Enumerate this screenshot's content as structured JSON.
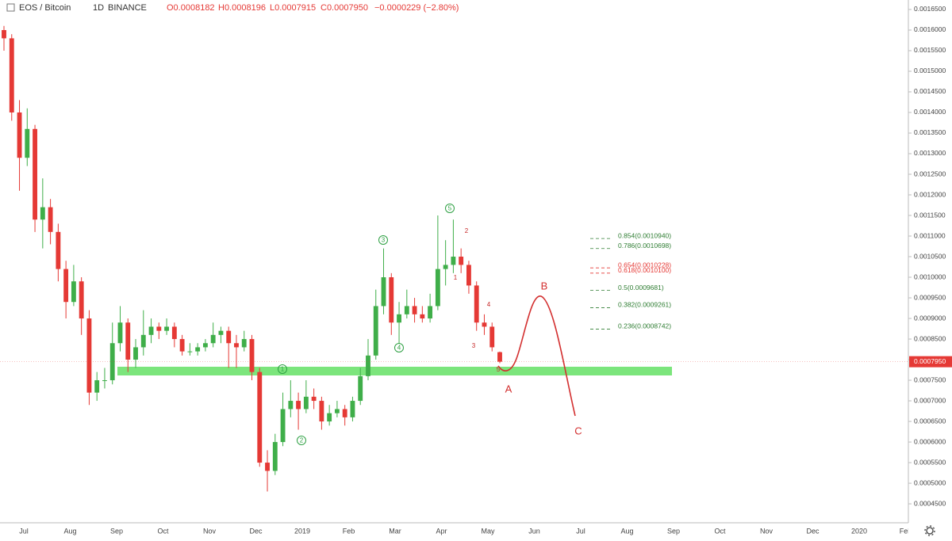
{
  "chart_data": {
    "type": "candlestick",
    "header": {
      "symbol": "EOS / Bitcoin",
      "interval": "1D",
      "exchange": "BINANCE",
      "ohlc": [
        "O0.0008182",
        "H0.0008196",
        "L0.0007915",
        "C0.0007950",
        "−0.0000229 (−2.80%)"
      ]
    },
    "last_price_label": "0.0007950",
    "up_color": "#3fae49",
    "down_color": "#e53935",
    "ylim": [
      0.000404,
      0.001673
    ],
    "yticks": [
      {
        "value": 0.00045,
        "label": "0.0004500"
      },
      {
        "value": 0.0005,
        "label": "0.0005000"
      },
      {
        "value": 0.00055,
        "label": "0.0005500"
      },
      {
        "value": 0.0006,
        "label": "0.0006000"
      },
      {
        "value": 0.00065,
        "label": "0.0006500"
      },
      {
        "value": 0.0007,
        "label": "0.0007000"
      },
      {
        "value": 0.00075,
        "label": "0.0007500"
      },
      {
        "value": 0.0008,
        "label": "0.0008000"
      },
      {
        "value": 0.00085,
        "label": "0.0008500"
      },
      {
        "value": 0.0009,
        "label": "0.0009000"
      },
      {
        "value": 0.00095,
        "label": "0.0009500"
      },
      {
        "value": 0.001,
        "label": "0.0010000"
      },
      {
        "value": 0.00105,
        "label": "0.0010500"
      },
      {
        "value": 0.0011,
        "label": "0.0011000"
      },
      {
        "value": 0.00115,
        "label": "0.0011500"
      },
      {
        "value": 0.0012,
        "label": "0.0012000"
      },
      {
        "value": 0.00125,
        "label": "0.0012500"
      },
      {
        "value": 0.0013,
        "label": "0.0013000"
      },
      {
        "value": 0.00135,
        "label": "0.0013500"
      },
      {
        "value": 0.0014,
        "label": "0.0014000"
      },
      {
        "value": 0.00145,
        "label": "0.0014500"
      },
      {
        "value": 0.0015,
        "label": "0.0015000"
      },
      {
        "value": 0.00155,
        "label": "0.0015500"
      },
      {
        "value": 0.0016,
        "label": "0.0016000"
      },
      {
        "value": 0.00165,
        "label": "0.0016500"
      }
    ],
    "xticks": [
      "Jul",
      "Aug",
      "Sep",
      "Oct",
      "Nov",
      "Dec",
      "2019",
      "Feb",
      "Mar",
      "Apr",
      "May",
      "Jun",
      "Jul",
      "Aug",
      "Sep",
      "Oct",
      "Nov",
      "Dec",
      "2020",
      "Feb"
    ],
    "ohlc": [
      [
        0.0016,
        0.00161,
        0.00155,
        0.00158
      ],
      [
        0.00158,
        0.00159,
        0.00138,
        0.0014
      ],
      [
        0.0014,
        0.00143,
        0.00121,
        0.00129
      ],
      [
        0.00129,
        0.00141,
        0.00127,
        0.00136
      ],
      [
        0.00136,
        0.00137,
        0.00111,
        0.00114
      ],
      [
        0.00114,
        0.00124,
        0.00107,
        0.00117
      ],
      [
        0.00117,
        0.00119,
        0.00108,
        0.00111
      ],
      [
        0.00111,
        0.00113,
        0.00099,
        0.00102
      ],
      [
        0.00102,
        0.00104,
        0.0009,
        0.00094
      ],
      [
        0.00094,
        0.00103,
        0.00093,
        0.00099
      ],
      [
        0.00099,
        0.001,
        0.00086,
        0.0009
      ],
      [
        0.0009,
        0.00092,
        0.00069,
        0.00072
      ],
      [
        0.00072,
        0.00077,
        0.0007,
        0.00075
      ],
      [
        0.00075,
        0.00078,
        0.00073,
        0.00075
      ],
      [
        0.00075,
        0.00089,
        0.00074,
        0.00084
      ],
      [
        0.00084,
        0.00093,
        0.00082,
        0.00089
      ],
      [
        0.00089,
        0.0009,
        0.00077,
        0.0008
      ],
      [
        0.0008,
        0.00085,
        0.00078,
        0.00083
      ],
      [
        0.00083,
        0.00092,
        0.00081,
        0.00086
      ],
      [
        0.00086,
        0.0009,
        0.00084,
        0.00088
      ],
      [
        0.00088,
        0.00089,
        0.00085,
        0.00087
      ],
      [
        0.00087,
        0.0009,
        0.00086,
        0.00088
      ],
      [
        0.00088,
        0.00089,
        0.00083,
        0.00085
      ],
      [
        0.00085,
        0.00086,
        0.00081,
        0.00082
      ],
      [
        0.00082,
        0.00084,
        0.00081,
        0.00082
      ],
      [
        0.00082,
        0.00084,
        0.00081,
        0.00083
      ],
      [
        0.00083,
        0.00085,
        0.00082,
        0.00084
      ],
      [
        0.00084,
        0.00089,
        0.00083,
        0.00086
      ],
      [
        0.00086,
        0.00088,
        0.00084,
        0.00087
      ],
      [
        0.00087,
        0.00088,
        0.00078,
        0.00084
      ],
      [
        0.00084,
        0.00086,
        0.00078,
        0.00083
      ],
      [
        0.00083,
        0.00087,
        0.00082,
        0.00085
      ],
      [
        0.00085,
        0.00086,
        0.00075,
        0.00077
      ],
      [
        0.00077,
        0.00078,
        0.00054,
        0.00055
      ],
      [
        0.00055,
        0.00058,
        0.00048,
        0.00053
      ],
      [
        0.00053,
        0.00062,
        0.00052,
        0.0006
      ],
      [
        0.0006,
        0.00072,
        0.00059,
        0.00068
      ],
      [
        0.00068,
        0.00075,
        0.00066,
        0.0007
      ],
      [
        0.0007,
        0.00072,
        0.00063,
        0.00068
      ],
      [
        0.00068,
        0.00075,
        0.00067,
        0.00071
      ],
      [
        0.00071,
        0.00073,
        0.00068,
        0.0007
      ],
      [
        0.0007,
        0.00071,
        0.00063,
        0.00065
      ],
      [
        0.00065,
        0.00069,
        0.00064,
        0.00067
      ],
      [
        0.00067,
        0.0007,
        0.00066,
        0.00068
      ],
      [
        0.00068,
        0.00069,
        0.00064,
        0.00066
      ],
      [
        0.00066,
        0.00071,
        0.00065,
        0.0007
      ],
      [
        0.0007,
        0.00078,
        0.00069,
        0.00076
      ],
      [
        0.00076,
        0.00085,
        0.00075,
        0.00081
      ],
      [
        0.00081,
        0.00097,
        0.0008,
        0.00093
      ],
      [
        0.00093,
        0.00107,
        0.00091,
        0.001
      ],
      [
        0.001,
        0.00101,
        0.00086,
        0.00089
      ],
      [
        0.00089,
        0.00094,
        0.00084,
        0.00091
      ],
      [
        0.00091,
        0.00097,
        0.0009,
        0.00093
      ],
      [
        0.00093,
        0.00095,
        0.00089,
        0.00091
      ],
      [
        0.00091,
        0.00093,
        0.00089,
        0.0009
      ],
      [
        0.0009,
        0.00096,
        0.00089,
        0.00093
      ],
      [
        0.00093,
        0.00115,
        0.00092,
        0.00102
      ],
      [
        0.00102,
        0.00109,
        0.00098,
        0.00103
      ],
      [
        0.00103,
        0.00114,
        0.00101,
        0.00105
      ],
      [
        0.00105,
        0.00107,
        0.00101,
        0.00103
      ],
      [
        0.00103,
        0.00104,
        0.00096,
        0.00098
      ],
      [
        0.00098,
        0.00099,
        0.00087,
        0.00089
      ],
      [
        0.00089,
        0.00091,
        0.00086,
        0.00088
      ],
      [
        0.00088,
        0.00089,
        0.00082,
        0.00083
      ],
      [
        0.0008182,
        0.0008196,
        0.0007915,
        0.000795
      ]
    ],
    "fib": [
      {
        "label": "0.854(0.0010940)",
        "price": 0.001094,
        "color": "#2e7d32"
      },
      {
        "label": "0.786(0.0010698)",
        "price": 0.0010698,
        "color": "#2e7d32"
      },
      {
        "label": "0.654(0.0010228)",
        "price": 0.0010228,
        "color": "#e53935"
      },
      {
        "label": "0.618(0.0010100)",
        "price": 0.00101,
        "color": "#e53935"
      },
      {
        "label": "0.5(0.0009681)",
        "price": 0.0009681,
        "color": "#2e7d32"
      },
      {
        "label": "0.382(0.0009261)",
        "price": 0.0009261,
        "color": "#2e7d32"
      },
      {
        "label": "0.236(0.0008742)",
        "price": 0.0008742,
        "color": "#2e7d32"
      }
    ],
    "wave_major": [
      "1",
      "2",
      "3",
      "4",
      "5"
    ],
    "wave_minor": [
      "1",
      "2",
      "3",
      "4",
      "5"
    ],
    "wave_abc": [
      "A",
      "B",
      "C"
    ]
  }
}
